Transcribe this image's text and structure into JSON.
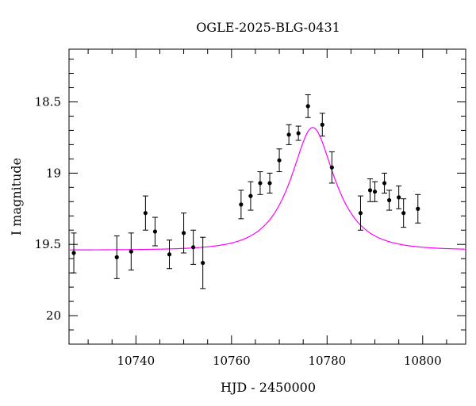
{
  "chart_data": {
    "type": "scatter",
    "title": "OGLE-2025-BLG-0431",
    "xlabel": "HJD - 2450000",
    "ylabel": "I magnitude",
    "xlim": [
      10726,
      10809
    ],
    "ylim": [
      20.2,
      18.13
    ],
    "y_inverted": true,
    "grid": false,
    "x_ticks": [
      {
        "value": 10740,
        "label": "10740"
      },
      {
        "value": 10760,
        "label": "10760"
      },
      {
        "value": 10780,
        "label": "10780"
      },
      {
        "value": 10800,
        "label": "10800"
      }
    ],
    "y_ticks": [
      {
        "value": 18.5,
        "label": "18.5"
      },
      {
        "value": 19.0,
        "label": "19"
      },
      {
        "value": 19.5,
        "label": "19.5"
      },
      {
        "value": 20.0,
        "label": "20"
      }
    ],
    "points": [
      {
        "x": 10727.0,
        "y": 19.56,
        "err": 0.14
      },
      {
        "x": 10736.0,
        "y": 19.59,
        "err": 0.15
      },
      {
        "x": 10739.0,
        "y": 19.55,
        "err": 0.13
      },
      {
        "x": 10742.0,
        "y": 19.28,
        "err": 0.12
      },
      {
        "x": 10744.0,
        "y": 19.41,
        "err": 0.1
      },
      {
        "x": 10747.0,
        "y": 19.57,
        "err": 0.1
      },
      {
        "x": 10750.0,
        "y": 19.42,
        "err": 0.14
      },
      {
        "x": 10752.0,
        "y": 19.52,
        "err": 0.12
      },
      {
        "x": 10754.0,
        "y": 19.63,
        "err": 0.18
      },
      {
        "x": 10762.0,
        "y": 19.22,
        "err": 0.1
      },
      {
        "x": 10764.0,
        "y": 19.16,
        "err": 0.1
      },
      {
        "x": 10766.0,
        "y": 19.07,
        "err": 0.08
      },
      {
        "x": 10768.0,
        "y": 19.07,
        "err": 0.07
      },
      {
        "x": 10770.0,
        "y": 18.91,
        "err": 0.08
      },
      {
        "x": 10772.0,
        "y": 18.73,
        "err": 0.07
      },
      {
        "x": 10774.0,
        "y": 18.72,
        "err": 0.05
      },
      {
        "x": 10776.0,
        "y": 18.53,
        "err": 0.08
      },
      {
        "x": 10779.0,
        "y": 18.66,
        "err": 0.08
      },
      {
        "x": 10781.0,
        "y": 18.96,
        "err": 0.11
      },
      {
        "x": 10787.0,
        "y": 19.28,
        "err": 0.12
      },
      {
        "x": 10789.0,
        "y": 19.12,
        "err": 0.08
      },
      {
        "x": 10790.0,
        "y": 19.13,
        "err": 0.07
      },
      {
        "x": 10792.0,
        "y": 19.07,
        "err": 0.07
      },
      {
        "x": 10793.0,
        "y": 19.19,
        "err": 0.07
      },
      {
        "x": 10795.0,
        "y": 19.17,
        "err": 0.08
      },
      {
        "x": 10796.0,
        "y": 19.28,
        "err": 0.1
      },
      {
        "x": 10799.0,
        "y": 19.25,
        "err": 0.1
      }
    ],
    "model_curve": {
      "color": "#ff00ff",
      "baseline": 19.54,
      "peak_x": 10777.0,
      "peak_y": 18.68,
      "halfwidth": 8.0
    },
    "marker_color": "#000000"
  }
}
